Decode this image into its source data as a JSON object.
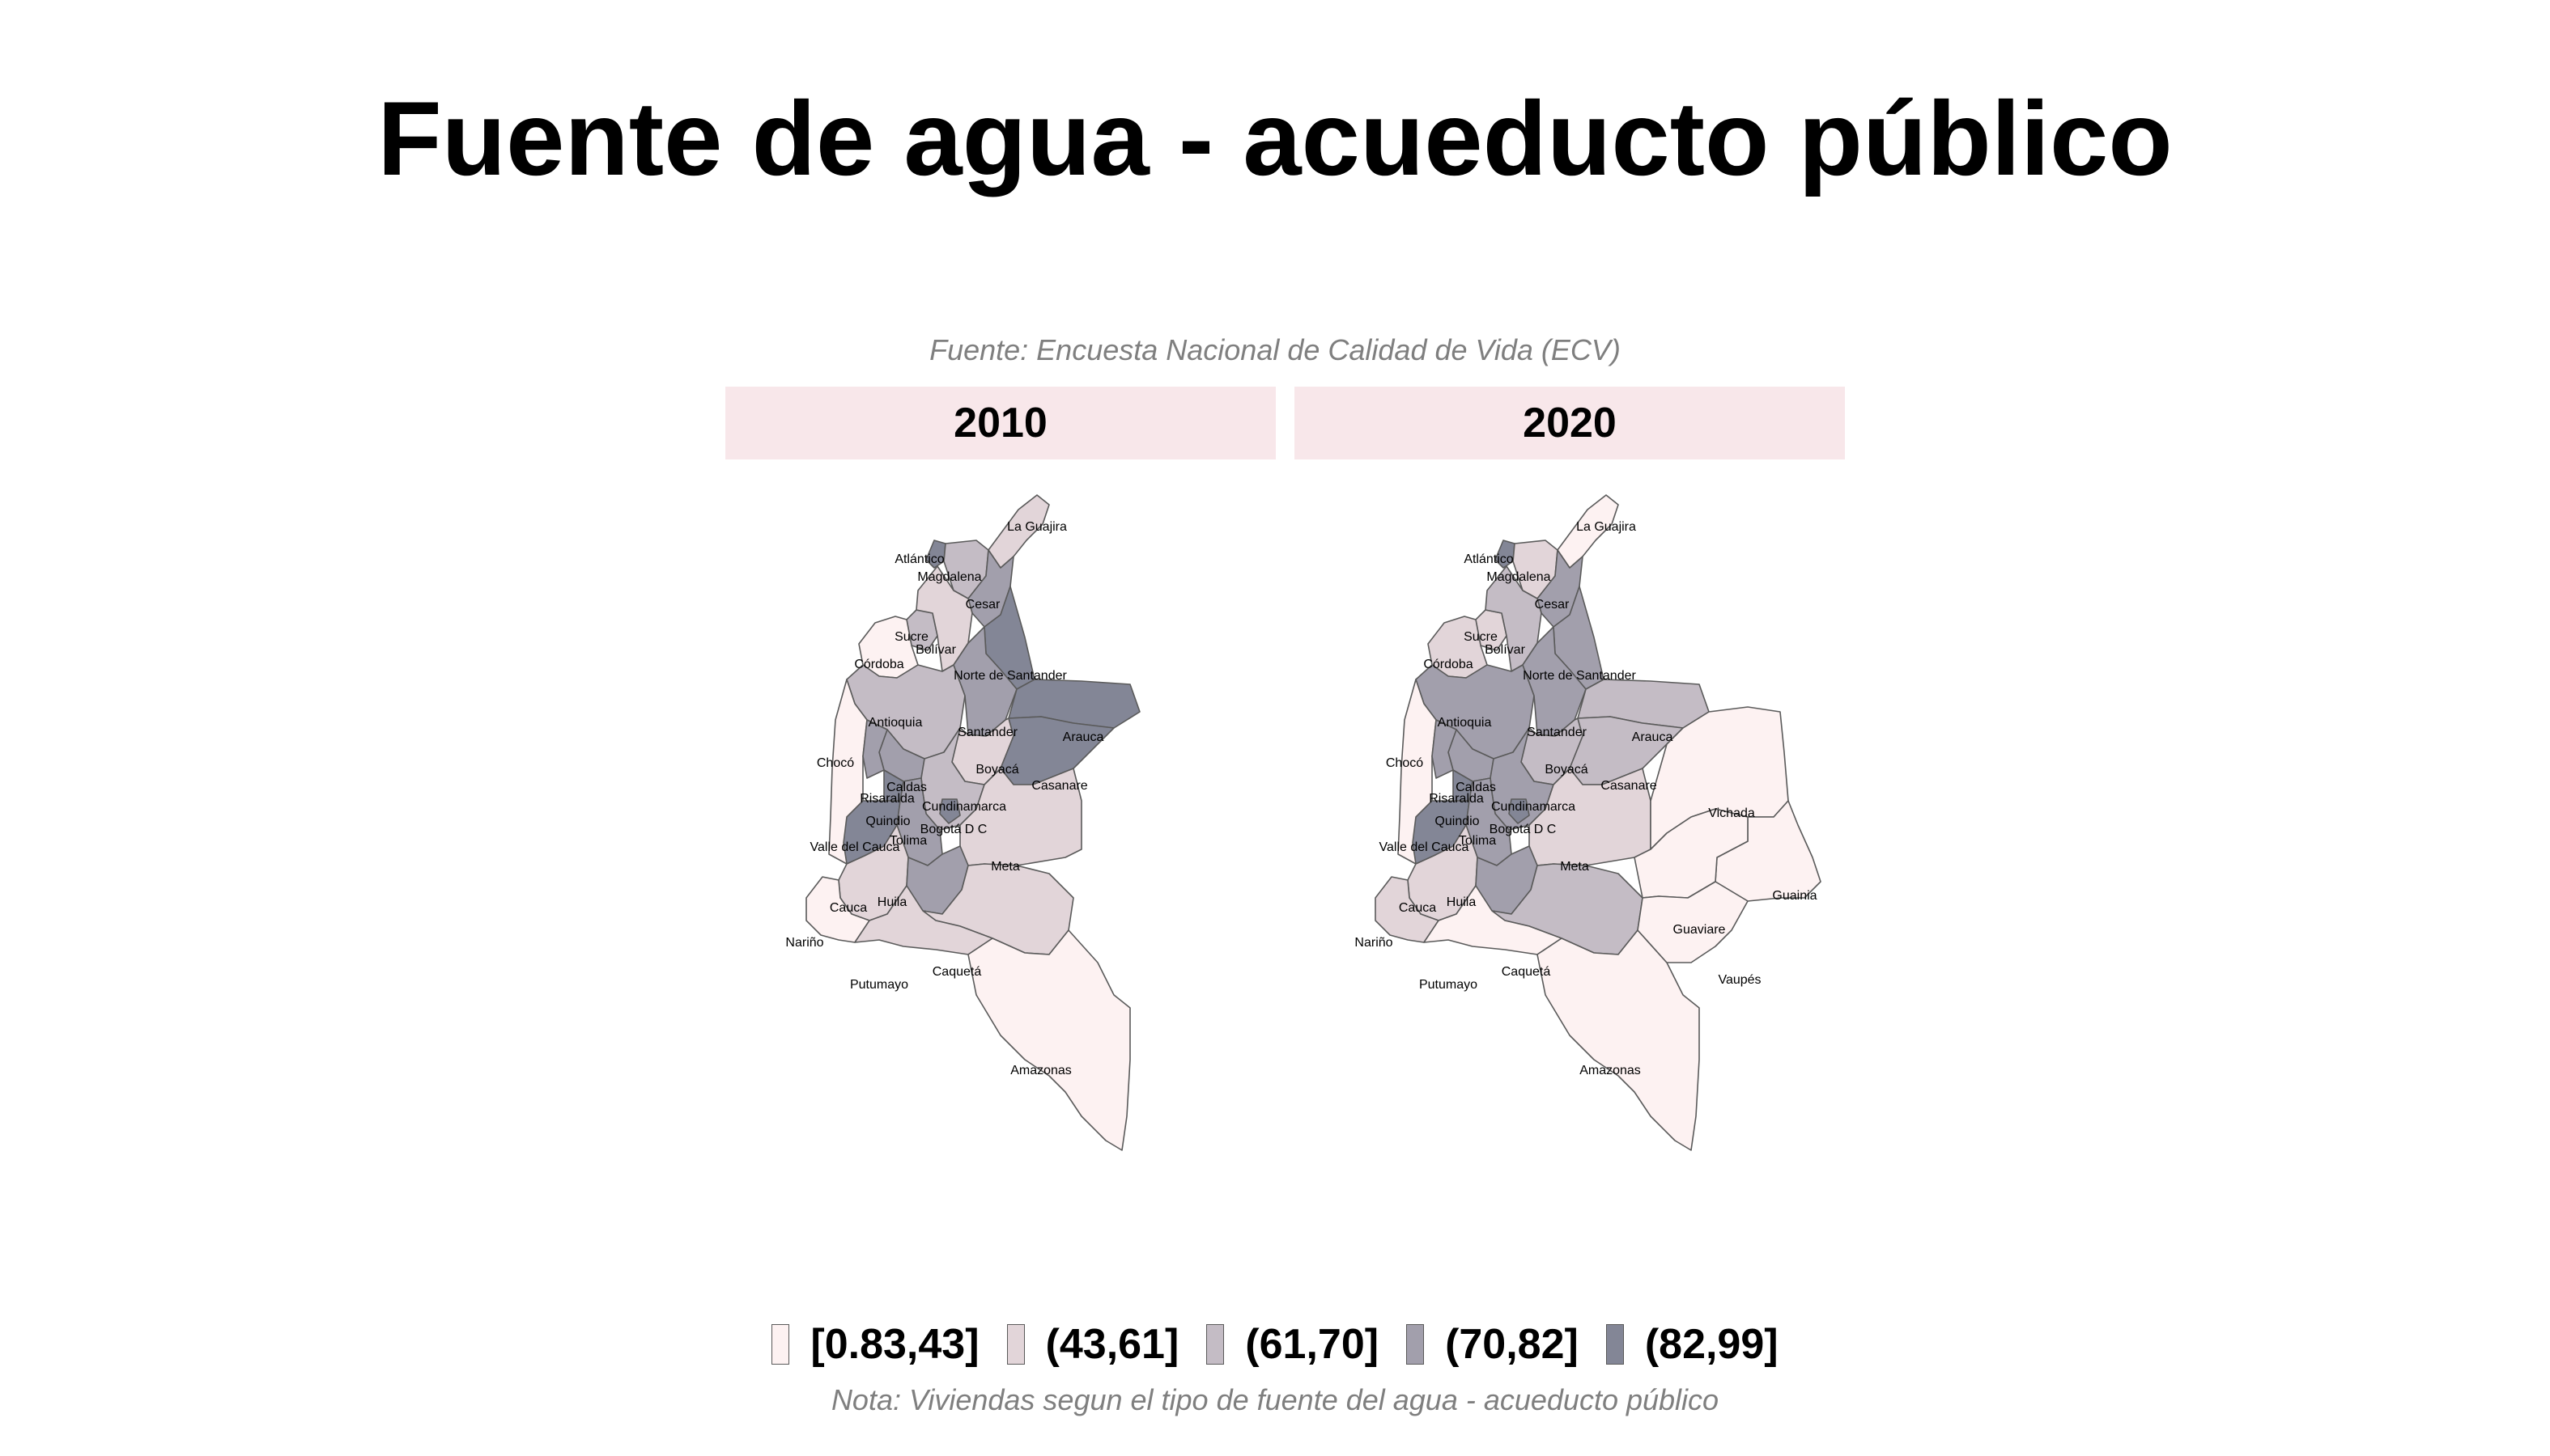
{
  "title": "Fuente de agua - acueducto público",
  "subtitle": "Fuente: Encuesta Nacional de Calidad de Vida (ECV)",
  "note": "Nota: Viviendas segun el tipo de fuente del agua - acueducto público",
  "panels": [
    {
      "year": "2010"
    },
    {
      "year": "2020"
    }
  ],
  "legend": {
    "classes": [
      {
        "label": "[0.83,43]",
        "color": "#fdf2f2"
      },
      {
        "label": "(43,61]",
        "color": "#e2d5d9"
      },
      {
        "label": "(61,70]",
        "color": "#c4bcc5"
      },
      {
        "label": "(70,82]",
        "color": "#a29fac"
      },
      {
        "label": "(82,99]",
        "color": "#838696"
      }
    ]
  },
  "map_data": {
    "departments": [
      "La Guajira",
      "Atlántico",
      "Magdalena",
      "Cesar",
      "Sucre",
      "Bolívar",
      "Córdoba",
      "Norte de Santander",
      "Antioquia",
      "Santander",
      "Arauca",
      "Chocó",
      "Boyacá",
      "Casanare",
      "Caldas",
      "Risaralda",
      "Cundinamarca",
      "Quindio",
      "Bogotá D C",
      "Valle del Cauca",
      "Tolima",
      "Meta",
      "Cauca",
      "Huila",
      "Nariño",
      "Caquetá",
      "Putumayo",
      "Amazonas",
      "Vichada",
      "Guainia",
      "Guaviare",
      "Vaupés"
    ],
    "class_2010": {
      "La Guajira": 1,
      "Atlántico": 4,
      "Magdalena": 2,
      "Cesar": 3,
      "Sucre": 2,
      "Bolívar": 1,
      "Córdoba": 0,
      "Norte de Santander": 4,
      "Antioquia": 2,
      "Santander": 3,
      "Arauca": 4,
      "Chocó": 0,
      "Boyacá": 1,
      "Casanare": 4,
      "Caldas": 3,
      "Risaralda": 3,
      "Cundinamarca": 2,
      "Quindio": 4,
      "Bogotá D C": 4,
      "Valle del Cauca": 4,
      "Tolima": 3,
      "Meta": 1,
      "Cauca": 1,
      "Huila": 3,
      "Nariño": 0,
      "Caquetá": 1,
      "Putumayo": 1,
      "Amazonas": 0
    },
    "class_2020": {
      "La Guajira": 0,
      "Atlántico": 4,
      "Magdalena": 1,
      "Cesar": 3,
      "Sucre": 1,
      "Bolívar": 2,
      "Córdoba": 1,
      "Norte de Santander": 3,
      "Antioquia": 3,
      "Santander": 3,
      "Arauca": 2,
      "Chocó": 0,
      "Boyacá": 2,
      "Casanare": 2,
      "Caldas": 3,
      "Risaralda": 3,
      "Cundinamarca": 3,
      "Quindio": 4,
      "Bogotá D C": 4,
      "Valle del Cauca": 4,
      "Tolima": 3,
      "Meta": 1,
      "Cauca": 1,
      "Huila": 3,
      "Nariño": 1,
      "Caquetá": 2,
      "Putumayo": 0,
      "Amazonas": 0,
      "Vichada": 0,
      "Guainia": 0,
      "Guaviare": 0,
      "Vaupés": 0
    }
  }
}
